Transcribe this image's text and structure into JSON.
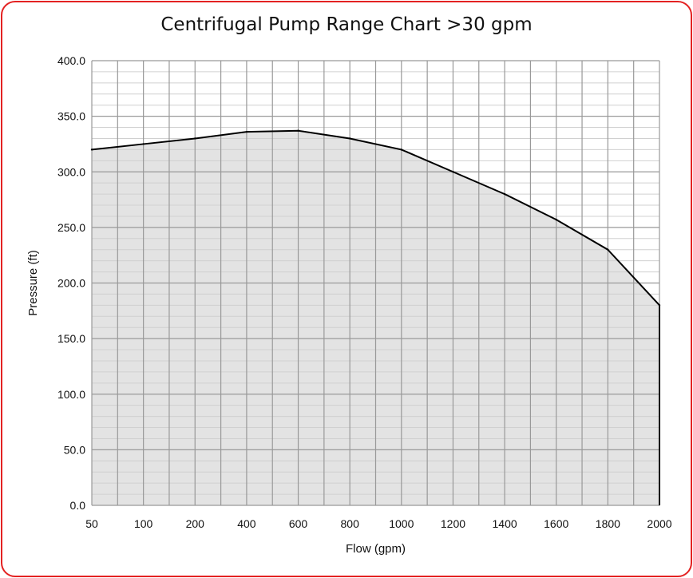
{
  "chart_data": {
    "type": "area",
    "title": "Centrifugal Pump Range Chart >30 gpm",
    "xlabel": "Flow (gpm)",
    "ylabel": "Pressure (ft)",
    "x": [
      50,
      100,
      200,
      400,
      600,
      800,
      1000,
      1200,
      1400,
      1600,
      1800,
      2000
    ],
    "y_ticks": [
      "0.0",
      "50.0",
      "100.0",
      "150.0",
      "200.0",
      "250.0",
      "300.0",
      "350.0",
      "400.0"
    ],
    "ylim": [
      0,
      400
    ],
    "grid": true,
    "legend": "none",
    "series": [
      {
        "values": [
          320,
          325,
          330,
          336,
          337,
          330,
          320,
          300,
          280,
          257,
          230,
          180
        ]
      }
    ],
    "colors": {
      "fill": "#e3e3e3",
      "line": "#000000",
      "grid_major": "#999999",
      "grid_minor": "#d0d0d0",
      "frame": "#e32222"
    }
  }
}
